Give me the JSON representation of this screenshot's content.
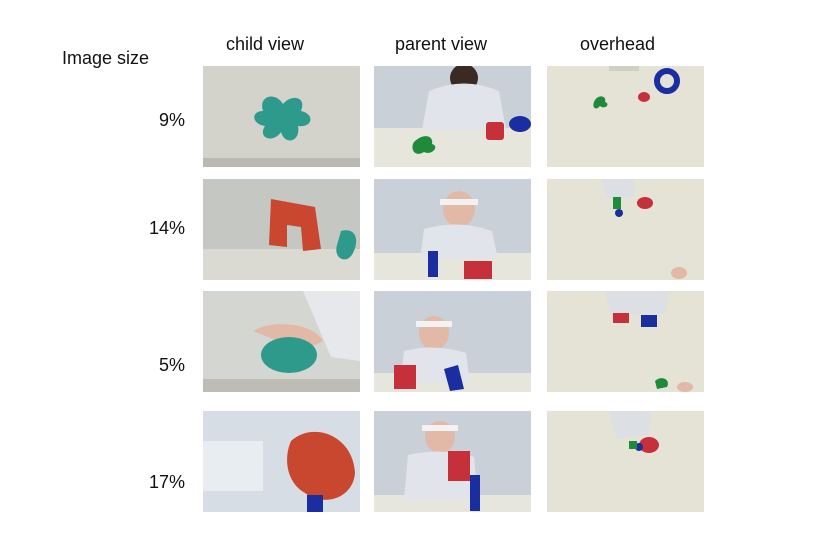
{
  "header": {
    "image_size_label": "Image size",
    "columns": [
      "child view",
      "parent view",
      "overhead"
    ]
  },
  "rows": [
    {
      "size": "9%"
    },
    {
      "size": "14%"
    },
    {
      "size": "5%"
    },
    {
      "size": "17%"
    }
  ],
  "colors": {
    "wall": "#c9ccc6",
    "table": "#e3e3d8",
    "teal": "#2e9a8c",
    "red": "#c6303a",
    "blue": "#1b2ea0",
    "green": "#1e8a3a",
    "skin": "#e2b9a6",
    "coat": "#dcdfe4"
  }
}
